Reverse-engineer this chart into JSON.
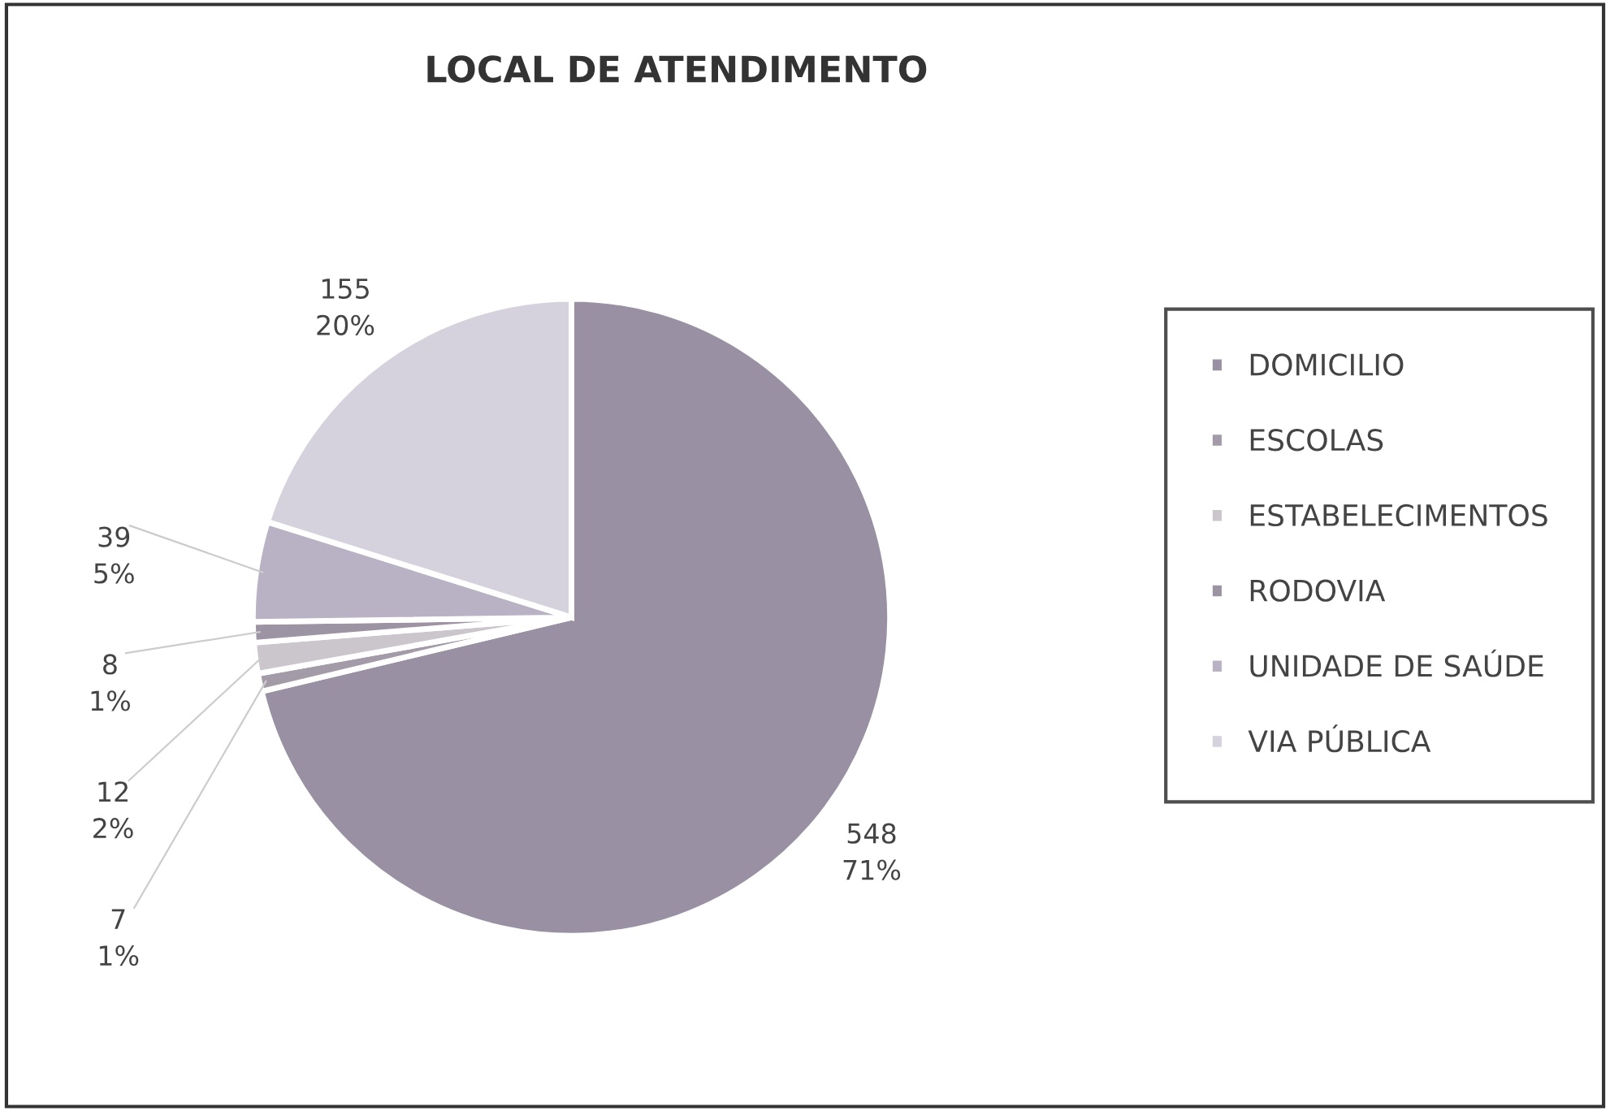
{
  "chart_data": {
    "type": "pie",
    "title": "LOCAL DE ATENDIMENTO",
    "categories": [
      "DOMICILIO",
      "ESCOLAS",
      "ESTABELECIMENTOS",
      "RODOVIA",
      "UNIDADE DE SAÚDE",
      "VIA PÚBLICA"
    ],
    "values": [
      548,
      7,
      12,
      8,
      39,
      155
    ],
    "colors": [
      "#9a90a4",
      "#a39ba8",
      "#cbc6cc",
      "#9d94a3",
      "#b9b1c4",
      "#d5d1dd"
    ],
    "value_labels": [
      "548\n71%",
      "7\n1%",
      "12\n2%",
      "8\n1%",
      "39\n5%",
      "155\n20%"
    ],
    "legend": "right"
  }
}
